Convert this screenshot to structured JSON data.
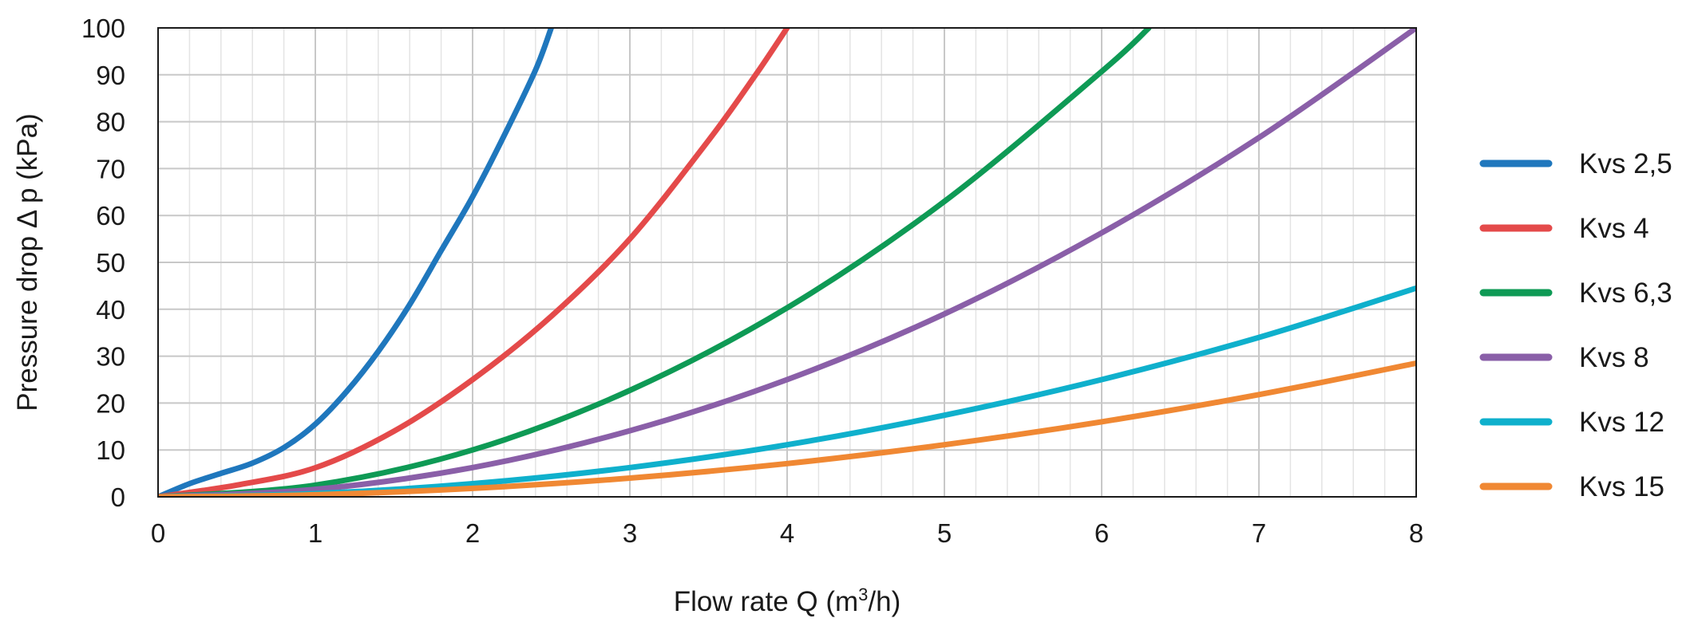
{
  "chart_data": {
    "type": "line",
    "title": "",
    "xlabel": "Flow rate Q (m³/h)",
    "xlabel_parts": {
      "before": "Flow rate Q (m",
      "sup": "3",
      "after": "/h)"
    },
    "ylabel": "Pressure drop Δ p (kPa)",
    "xlim": [
      0,
      8
    ],
    "ylim": [
      0,
      100
    ],
    "x_ticks": [
      "0",
      "1",
      "2",
      "3",
      "4",
      "5",
      "6",
      "7",
      "8"
    ],
    "y_ticks": [
      "0",
      "10",
      "20",
      "30",
      "40",
      "50",
      "60",
      "70",
      "80",
      "90",
      "100"
    ],
    "grid": true,
    "legend_position": "right",
    "series": [
      {
        "name": "Kvs 2,5",
        "color": "#1f77bd",
        "points": [
          [
            0,
            0
          ],
          [
            0.2,
            2.8
          ],
          [
            0.4,
            5.0
          ],
          [
            0.6,
            7.2
          ],
          [
            0.8,
            10.5
          ],
          [
            1.0,
            15.5
          ],
          [
            1.2,
            22.5
          ],
          [
            1.4,
            31
          ],
          [
            1.6,
            41
          ],
          [
            1.8,
            52.5
          ],
          [
            2.0,
            64
          ],
          [
            2.2,
            77
          ],
          [
            2.4,
            91
          ],
          [
            2.5,
            100
          ]
        ]
      },
      {
        "name": "Kvs 4",
        "color": "#e44a4a",
        "points": [
          [
            0,
            0
          ],
          [
            0.5,
            2.5
          ],
          [
            1.0,
            6.2
          ],
          [
            1.5,
            14
          ],
          [
            2.0,
            25
          ],
          [
            2.5,
            38.5
          ],
          [
            3.0,
            55
          ],
          [
            3.5,
            76
          ],
          [
            3.8,
            90
          ],
          [
            4.0,
            100
          ]
        ]
      },
      {
        "name": "Kvs 6,3",
        "color": "#0e9a55",
        "points": [
          [
            0,
            0
          ],
          [
            1,
            2.5
          ],
          [
            2,
            10
          ],
          [
            3,
            22.7
          ],
          [
            4,
            40.3
          ],
          [
            5,
            63
          ],
          [
            6,
            90.7
          ],
          [
            6.3,
            100
          ]
        ]
      },
      {
        "name": "Kvs 8",
        "color": "#8a5fa8",
        "points": [
          [
            0,
            0
          ],
          [
            1,
            1.6
          ],
          [
            2,
            6.25
          ],
          [
            3,
            14.1
          ],
          [
            4,
            25
          ],
          [
            5,
            39
          ],
          [
            6,
            56.3
          ],
          [
            7,
            76.6
          ],
          [
            8,
            100
          ]
        ]
      },
      {
        "name": "Kvs 12",
        "color": "#0fb0cc",
        "points": [
          [
            0,
            0
          ],
          [
            1,
            0.7
          ],
          [
            2,
            2.8
          ],
          [
            3,
            6.25
          ],
          [
            4,
            11.1
          ],
          [
            5,
            17.4
          ],
          [
            6,
            25
          ],
          [
            7,
            34
          ],
          [
            8,
            44.5
          ]
        ]
      },
      {
        "name": "Kvs 15",
        "color": "#f08833",
        "points": [
          [
            0,
            0
          ],
          [
            1,
            0.45
          ],
          [
            2,
            1.8
          ],
          [
            3,
            4.0
          ],
          [
            4,
            7.1
          ],
          [
            5,
            11.1
          ],
          [
            6,
            16.0
          ],
          [
            7,
            21.8
          ],
          [
            8,
            28.5
          ]
        ]
      }
    ]
  }
}
